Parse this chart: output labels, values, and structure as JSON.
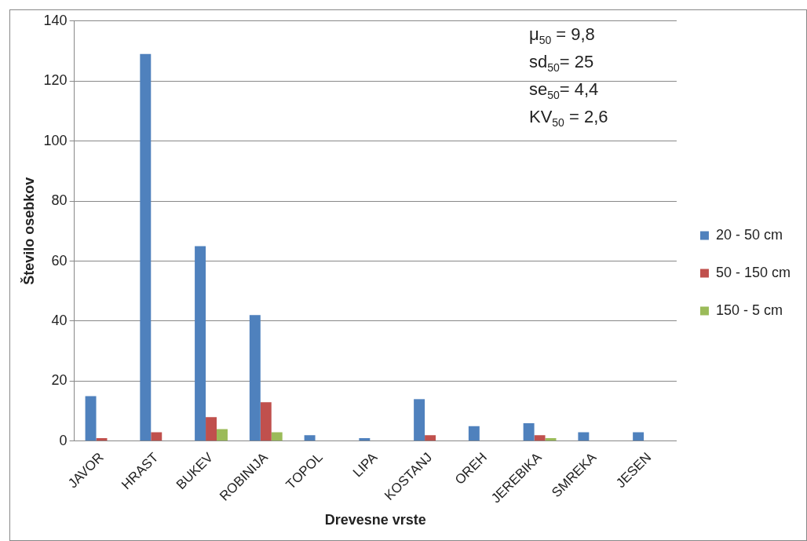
{
  "chart_data": {
    "type": "bar",
    "xlabel": "Drevesne vrste",
    "ylabel": "Število osebkov",
    "categories": [
      "JAVOR",
      "HRAST",
      "BUKEV",
      "ROBINIJA",
      "TOPOL",
      "LIPA",
      "KOSTANJ",
      "OREH",
      "JEREBIKA",
      "SMREKA",
      "JESEN"
    ],
    "series": [
      {
        "name": "20 - 50 cm",
        "color": "#4f81bd",
        "values": [
          15,
          129,
          65,
          42,
          2,
          1,
          14,
          5,
          6,
          3,
          3
        ]
      },
      {
        "name": "50 - 150 cm",
        "color": "#c0504d",
        "values": [
          1,
          3,
          8,
          13,
          0,
          0,
          2,
          0,
          2,
          0,
          0
        ]
      },
      {
        "name": "150 - 5 cm",
        "color": "#9bbb59",
        "values": [
          0,
          0,
          4,
          3,
          0,
          0,
          0,
          0,
          1,
          0,
          0
        ]
      }
    ],
    "ylim": [
      0,
      140
    ],
    "yticks": [
      0,
      20,
      40,
      60,
      80,
      100,
      120,
      140
    ],
    "grid": "y",
    "legend": "right",
    "annotations": [
      "μ$_{50}$ = 9,8",
      "sd$_{50}$= 25",
      "se$_{50}$= 4,4",
      "KV$_{50}$ = 2,6"
    ]
  }
}
